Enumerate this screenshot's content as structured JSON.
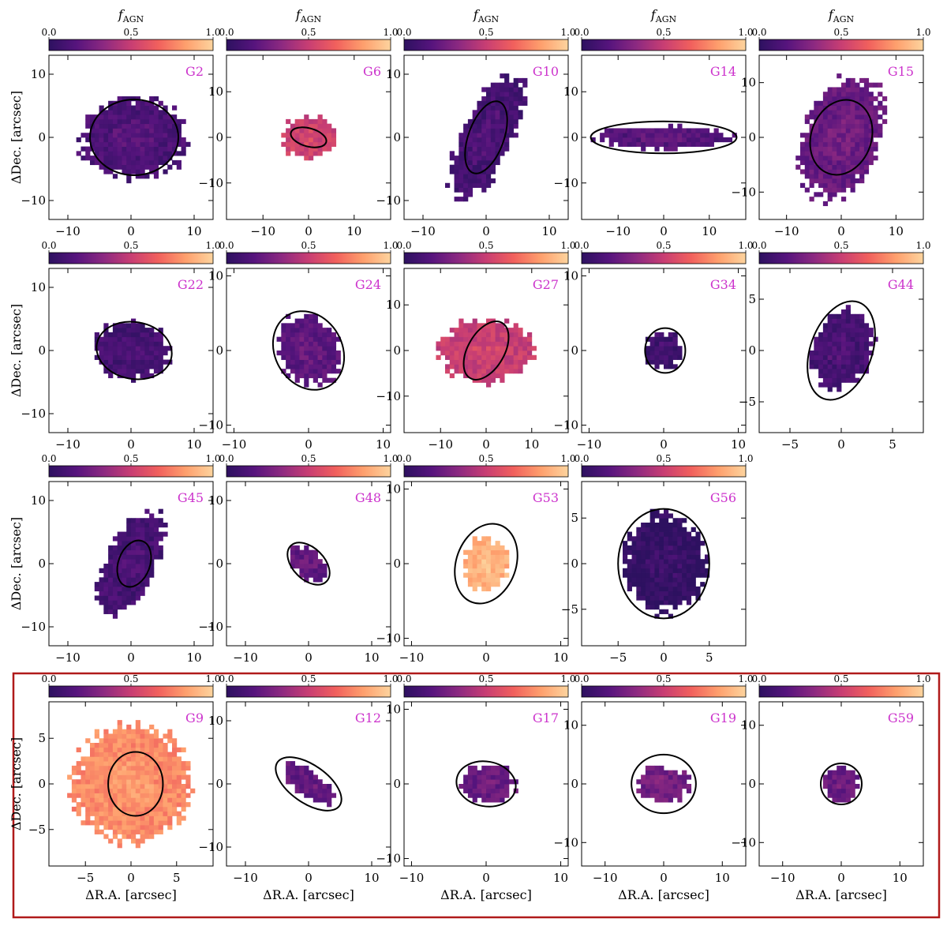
{
  "figure": {
    "xlabel": "ΔR.A. [arcsec]",
    "ylabel": "ΔDec. [arcsec]",
    "colorbar_title": "f",
    "colorbar_title_sub": "AGN",
    "colorbar_range": [
      0,
      1
    ],
    "colorbar_ticks": [
      "0.0",
      "0.5",
      "1.0"
    ],
    "colorbar_colors": [
      "#2d1160",
      "#56147d",
      "#8c2981",
      "#c83e73",
      "#f1605d",
      "#fe9f6d",
      "#fdd49e"
    ],
    "highlight_color": "#b01a1a",
    "ellipse_color": "#000000",
    "label_color": "#cc33cc"
  },
  "chart_data": [
    {
      "type": "heatmap",
      "label": "G2",
      "row": 0,
      "col": 0,
      "xlim": [
        -13,
        13
      ],
      "ylim": [
        -13,
        13
      ],
      "xticks": [
        -10,
        0,
        10
      ],
      "yticks": [
        -10,
        0,
        10
      ],
      "xlabels": true,
      "ylabels": true,
      "cb_title": true,
      "ellipse": {
        "cx": 0.5,
        "cy": 0,
        "a": 7,
        "b": 6,
        "angle": 0
      },
      "blob": {
        "cx": 0.5,
        "cy": 0,
        "rx": 8.5,
        "ry": 6.5,
        "angle": 0,
        "fagn": 0.12
      }
    },
    {
      "type": "heatmap",
      "label": "G6",
      "row": 0,
      "col": 1,
      "xlim": [
        -18,
        18
      ],
      "ylim": [
        -18,
        18
      ],
      "xticks": [
        -10,
        0,
        10
      ],
      "yticks": [
        -10,
        0,
        10
      ],
      "xlabels": true,
      "ylabels": true,
      "cb_title": true,
      "ellipse": {
        "cx": 0,
        "cy": 0,
        "a": 4,
        "b": 2,
        "angle": -15
      },
      "blob": {
        "cx": 0,
        "cy": 0,
        "rx": 6.5,
        "ry": 4.5,
        "angle": 0,
        "fagn": 0.52
      }
    },
    {
      "type": "heatmap",
      "label": "G10",
      "row": 0,
      "col": 2,
      "xlim": [
        -13,
        13
      ],
      "ylim": [
        -13,
        13
      ],
      "xticks": [
        -10,
        0,
        10
      ],
      "yticks": [
        -10,
        0,
        10
      ],
      "xlabels": true,
      "ylabels": true,
      "cb_title": true,
      "ellipse": {
        "cx": 0,
        "cy": 0,
        "a": 6,
        "b": 2.8,
        "angle": 70
      },
      "blob": {
        "cx": 0,
        "cy": 0,
        "rx": 11,
        "ry": 4,
        "angle": 65,
        "fagn": 0.1
      }
    },
    {
      "type": "heatmap",
      "label": "G14",
      "row": 0,
      "col": 3,
      "xlim": [
        -18,
        18
      ],
      "ylim": [
        -18,
        18
      ],
      "xticks": [
        -10,
        0,
        10
      ],
      "yticks": [
        -10,
        0,
        10
      ],
      "xlabels": true,
      "ylabels": true,
      "cb_title": true,
      "ellipse": {
        "cx": 0,
        "cy": 0,
        "a": 16,
        "b": 3.5,
        "angle": 0
      },
      "blob": {
        "cx": 0,
        "cy": 0,
        "rx": 15,
        "ry": 2.5,
        "angle": 0,
        "fagn": 0.15
      }
    },
    {
      "type": "heatmap",
      "label": "G15",
      "row": 0,
      "col": 4,
      "xlim": [
        -15,
        15
      ],
      "ylim": [
        -15,
        15
      ],
      "xticks": [
        -10,
        0,
        10
      ],
      "yticks": [
        -10,
        0,
        10
      ],
      "xlabels": true,
      "ylabels": true,
      "cb_title": true,
      "ellipse": {
        "cx": 0,
        "cy": 0,
        "a": 7,
        "b": 5.5,
        "angle": 70
      },
      "blob": {
        "cx": 0,
        "cy": 0,
        "rx": 12,
        "ry": 7,
        "angle": 70,
        "fagn": 0.22
      }
    },
    {
      "type": "heatmap",
      "label": "G22",
      "row": 1,
      "col": 0,
      "xlim": [
        -13,
        13
      ],
      "ylim": [
        -13,
        13
      ],
      "xticks": [
        -10,
        0,
        10
      ],
      "yticks": [
        -10,
        0,
        10
      ],
      "xlabels": true,
      "ylabels": true,
      "cb_title": false,
      "ellipse": {
        "cx": 0.5,
        "cy": 0,
        "a": 6,
        "b": 4.5,
        "angle": -10
      },
      "blob": {
        "cx": 0,
        "cy": 0,
        "rx": 6.2,
        "ry": 4.5,
        "angle": 0,
        "fagn": 0.1
      }
    },
    {
      "type": "heatmap",
      "label": "G24",
      "row": 1,
      "col": 1,
      "xlim": [
        -11,
        11
      ],
      "ylim": [
        -11,
        11
      ],
      "xticks": [
        -10,
        0,
        10
      ],
      "yticks": [
        -10,
        0,
        10
      ],
      "xlabels": true,
      "ylabels": true,
      "cb_title": false,
      "ellipse": {
        "cx": 0,
        "cy": 0,
        "a": 5.5,
        "b": 4.5,
        "angle": -60
      },
      "blob": {
        "cx": 0,
        "cy": 0,
        "rx": 5,
        "ry": 4,
        "angle": -60,
        "fagn": 0.18
      }
    },
    {
      "type": "heatmap",
      "label": "G27",
      "row": 1,
      "col": 2,
      "xlim": [
        -18,
        18
      ],
      "ylim": [
        -18,
        18
      ],
      "xticks": [
        -10,
        0,
        10
      ],
      "yticks": [
        -10,
        0,
        10
      ],
      "xlabels": true,
      "ylabels": true,
      "cb_title": false,
      "ellipse": {
        "cx": 0,
        "cy": 0,
        "a": 7,
        "b": 4,
        "angle": 60
      },
      "blob": {
        "cx": 0,
        "cy": 0,
        "rx": 10,
        "ry": 7,
        "angle": 0,
        "fagn": 0.5
      }
    },
    {
      "type": "heatmap",
      "label": "G34",
      "row": 1,
      "col": 3,
      "xlim": [
        -11,
        11
      ],
      "ylim": [
        -11,
        11
      ],
      "xticks": [
        -10,
        0,
        10
      ],
      "yticks": [
        -10,
        0,
        10
      ],
      "xlabels": true,
      "ylabels": true,
      "cb_title": false,
      "ellipse": {
        "cx": 0.2,
        "cy": 0,
        "a": 3,
        "b": 2.7,
        "angle": 90
      },
      "blob": {
        "cx": 0,
        "cy": 0,
        "rx": 2.5,
        "ry": 2.5,
        "angle": 0,
        "fagn": 0.08
      }
    },
    {
      "type": "heatmap",
      "label": "G44",
      "row": 1,
      "col": 4,
      "xlim": [
        -8,
        8
      ],
      "ylim": [
        -8,
        8
      ],
      "xticks": [
        -5,
        0,
        5
      ],
      "yticks": [
        -5,
        0,
        5
      ],
      "xlabels": true,
      "ylabels": true,
      "cb_title": false,
      "ellipse": {
        "cx": 0,
        "cy": 0,
        "a": 5,
        "b": 3,
        "angle": 70
      },
      "blob": {
        "cx": 0,
        "cy": 0,
        "rx": 4,
        "ry": 3,
        "angle": 70,
        "fagn": 0.1
      }
    },
    {
      "type": "heatmap",
      "label": "G45",
      "row": 2,
      "col": 0,
      "xlim": [
        -13,
        13
      ],
      "ylim": [
        -13,
        13
      ],
      "xticks": [
        -10,
        0,
        10
      ],
      "yticks": [
        -10,
        0,
        10
      ],
      "xlabels": true,
      "ylabels": true,
      "cb_title": false,
      "ellipse": {
        "cx": 0.5,
        "cy": 0,
        "a": 3.8,
        "b": 2.5,
        "angle": 70
      },
      "blob": {
        "cx": 0,
        "cy": 0,
        "rx": 9,
        "ry": 4,
        "angle": 65,
        "fagn": 0.1
      }
    },
    {
      "type": "heatmap",
      "label": "G48",
      "row": 2,
      "col": 1,
      "xlim": [
        -13,
        13
      ],
      "ylim": [
        -13,
        13
      ],
      "xticks": [
        -10,
        0,
        10
      ],
      "yticks": [
        -10,
        0,
        10
      ],
      "xlabels": true,
      "ylabels": true,
      "cb_title": false,
      "ellipse": {
        "cx": 0,
        "cy": 0,
        "a": 4,
        "b": 2.5,
        "angle": -45
      },
      "blob": {
        "cx": 0,
        "cy": 0,
        "rx": 3.5,
        "ry": 2.2,
        "angle": -45,
        "fagn": 0.2
      }
    },
    {
      "type": "heatmap",
      "label": "G53",
      "row": 2,
      "col": 2,
      "xlim": [
        -11,
        11
      ],
      "ylim": [
        -11,
        11
      ],
      "xticks": [
        -10,
        0,
        10
      ],
      "yticks": [
        -10,
        0,
        10
      ],
      "xlabels": true,
      "ylabels": true,
      "cb_title": false,
      "ellipse": {
        "cx": 0,
        "cy": 0,
        "a": 5.5,
        "b": 4,
        "angle": 70
      },
      "blob": {
        "cx": 0,
        "cy": 0,
        "rx": 3,
        "ry": 3.5,
        "angle": 0,
        "fagn": 0.88
      }
    },
    {
      "type": "heatmap",
      "label": "G56",
      "row": 2,
      "col": 3,
      "xlim": [
        -9,
        9
      ],
      "ylim": [
        -9,
        9
      ],
      "xticks": [
        -5,
        0,
        5
      ],
      "yticks": [
        -5,
        0,
        5
      ],
      "xlabels": true,
      "ylabels": true,
      "cb_title": false,
      "ellipse": {
        "cx": 0,
        "cy": 0,
        "a": 6,
        "b": 5,
        "angle": 90
      },
      "blob": {
        "cx": 0,
        "cy": 0,
        "rx": 4.5,
        "ry": 5.5,
        "angle": 0,
        "fagn": 0.02
      }
    },
    {
      "type": "heatmap",
      "label": "G9",
      "row": 3,
      "col": 0,
      "xlim": [
        -9,
        9
      ],
      "ylim": [
        -9,
        9
      ],
      "xticks": [
        -5,
        0,
        5
      ],
      "yticks": [
        -5,
        0,
        5
      ],
      "xlabels": true,
      "ylabels": true,
      "cb_title": false,
      "ellipse": {
        "cx": 0.5,
        "cy": 0,
        "a": 3.5,
        "b": 3,
        "angle": 90
      },
      "blob": {
        "cx": 0,
        "cy": 0,
        "rx": 6.5,
        "ry": 6.5,
        "angle": 0,
        "fagn": 0.78
      }
    },
    {
      "type": "heatmap",
      "label": "G12",
      "row": 3,
      "col": 1,
      "xlim": [
        -13,
        13
      ],
      "ylim": [
        -13,
        13
      ],
      "xticks": [
        -10,
        0,
        10
      ],
      "yticks": [
        -10,
        0,
        10
      ],
      "xlabels": true,
      "ylabels": true,
      "cb_title": false,
      "ellipse": {
        "cx": 0,
        "cy": 0,
        "a": 6,
        "b": 3,
        "angle": -35
      },
      "blob": {
        "cx": 0,
        "cy": 0,
        "rx": 5,
        "ry": 2,
        "angle": -35,
        "fagn": 0.2
      }
    },
    {
      "type": "heatmap",
      "label": "G17",
      "row": 3,
      "col": 2,
      "xlim": [
        -11,
        11
      ],
      "ylim": [
        -11,
        11
      ],
      "xticks": [
        -10,
        0,
        10
      ],
      "yticks": [
        -10,
        0,
        10
      ],
      "xlabels": true,
      "ylabels": true,
      "cb_title": false,
      "ellipse": {
        "cx": 0,
        "cy": 0,
        "a": 4,
        "b": 3,
        "angle": -10
      },
      "blob": {
        "cx": 0,
        "cy": 0,
        "rx": 4,
        "ry": 2.5,
        "angle": 0,
        "fagn": 0.22
      }
    },
    {
      "type": "heatmap",
      "label": "G19",
      "row": 3,
      "col": 3,
      "xlim": [
        -14,
        14
      ],
      "ylim": [
        -14,
        14
      ],
      "xticks": [
        -10,
        0,
        10
      ],
      "yticks": [
        -10,
        0,
        10
      ],
      "xlabels": true,
      "ylabels": true,
      "cb_title": false,
      "ellipse": {
        "cx": 0,
        "cy": 0,
        "a": 5.5,
        "b": 5,
        "angle": 0
      },
      "blob": {
        "cx": 0,
        "cy": 0,
        "rx": 4.5,
        "ry": 3,
        "angle": 0,
        "fagn": 0.25
      }
    },
    {
      "type": "heatmap",
      "label": "G59",
      "row": 3,
      "col": 4,
      "xlim": [
        -14,
        14
      ],
      "ylim": [
        -14,
        14
      ],
      "xticks": [
        -10,
        0,
        10
      ],
      "yticks": [
        -10,
        0,
        10
      ],
      "xlabels": true,
      "ylabels": true,
      "cb_title": false,
      "ellipse": {
        "cx": 0,
        "cy": 0,
        "a": 3.5,
        "b": 3.5,
        "angle": 0
      },
      "blob": {
        "cx": 0,
        "cy": 0,
        "rx": 3,
        "ry": 3,
        "angle": 0,
        "fagn": 0.22
      }
    }
  ]
}
